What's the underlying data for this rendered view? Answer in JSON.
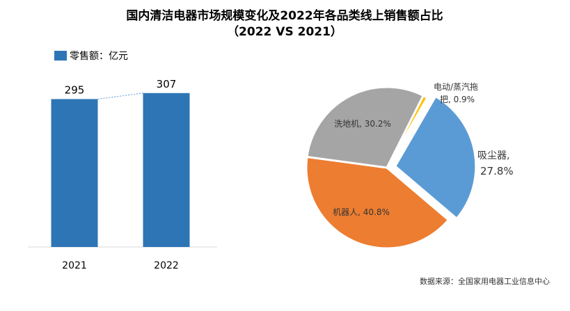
{
  "title_line1": "国内清洁电器市场规模变化及2022年各品类线上销售额占比",
  "title_line2": "（2022 VS 2021）",
  "source": "数据来源：全国家用电器工业信息中心",
  "chart_data": [
    {
      "type": "bar",
      "categories": [
        "2021",
        "2022"
      ],
      "values": [
        295,
        307
      ],
      "legend": "零售额：亿元",
      "ylim": [
        0,
        340
      ],
      "legend_position": "top-left",
      "grid": false,
      "color": "#2E75B6",
      "connector_color": "#6FA8DC"
    },
    {
      "type": "pie",
      "slices": [
        {
          "label": "吸尘器,",
          "value_text": "27.8%",
          "value": 27.8,
          "color": "#5B9BD5",
          "exploded": true
        },
        {
          "label": "机器人, 40.8%",
          "value": 40.8,
          "color": "#ED7D31"
        },
        {
          "label": "洗地机, 30.2%",
          "value": 30.2,
          "color": "#A5A5A5"
        },
        {
          "label": "电动/蒸汽拖",
          "label2": "把, 0.9%",
          "value": 0.9,
          "color": "#FFC000"
        }
      ]
    }
  ]
}
